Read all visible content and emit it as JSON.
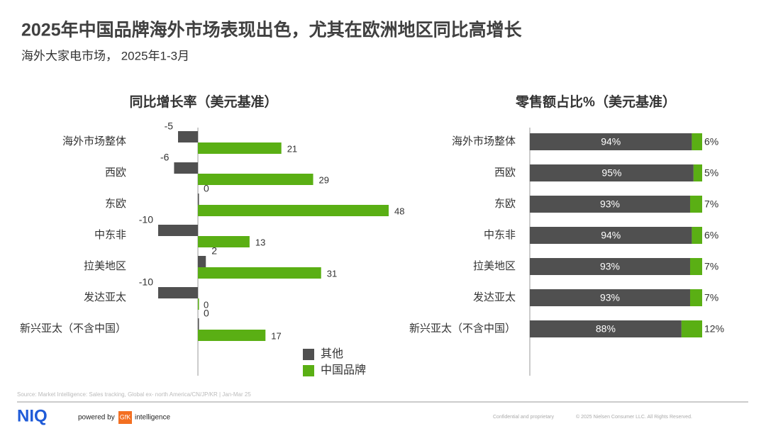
{
  "title": "2025年中国品牌海外市场表现出色，尤其在欧洲地区同比高增长",
  "subtitle": "海外大家电市场， 2025年1-3月",
  "source": "Source: Market Intelligence: Sales tracking, Global ex- north America/CN/JP/KR | Jan-Mar 25",
  "footer": {
    "logo": "NIQ",
    "powered_by": "powered by",
    "gfk": "GfK",
    "intelligence": "intelligence",
    "confidential": "Confidential and proprietary",
    "copyright": "© 2025 Nielsen Consumer LLC. All Rights Reserved."
  },
  "chart_data": [
    {
      "type": "bar",
      "orientation": "horizontal",
      "title": "同比增长率（美元基准）",
      "categories": [
        "海外市场整体",
        "西欧",
        "东欧",
        "中东非",
        "拉美地区",
        "发达亚太",
        "新兴亚太（不含中国）"
      ],
      "series": [
        {
          "name": "其他",
          "color": "#505050",
          "values": [
            -5,
            -6,
            0,
            -10,
            2,
            -10,
            0
          ]
        },
        {
          "name": "中国品牌",
          "color": "#5aaf14",
          "values": [
            21,
            29,
            48,
            13,
            31,
            0,
            17
          ]
        }
      ],
      "xlim": [
        -10,
        48
      ],
      "legend": "bottom"
    },
    {
      "type": "stacked_bar",
      "orientation": "horizontal",
      "title": "零售额占比%（美元基准）",
      "categories": [
        "海外市场整体",
        "西欧",
        "东欧",
        "中东非",
        "拉美地区",
        "发达亚太",
        "新兴亚太（不含中国）"
      ],
      "series": [
        {
          "name": "其他",
          "color": "#505050",
          "values": [
            94,
            95,
            93,
            94,
            93,
            93,
            88
          ],
          "value_labels": [
            "94%",
            "95%",
            "93%",
            "94%",
            "93%",
            "93%",
            "88%"
          ]
        },
        {
          "name": "中国品牌",
          "color": "#5aaf14",
          "values": [
            6,
            5,
            7,
            6,
            7,
            7,
            12
          ],
          "value_labels": [
            "6%",
            "5%",
            "7%",
            "6%",
            "7%",
            "7%",
            "12%"
          ]
        }
      ],
      "xlim": [
        0,
        100
      ]
    }
  ]
}
